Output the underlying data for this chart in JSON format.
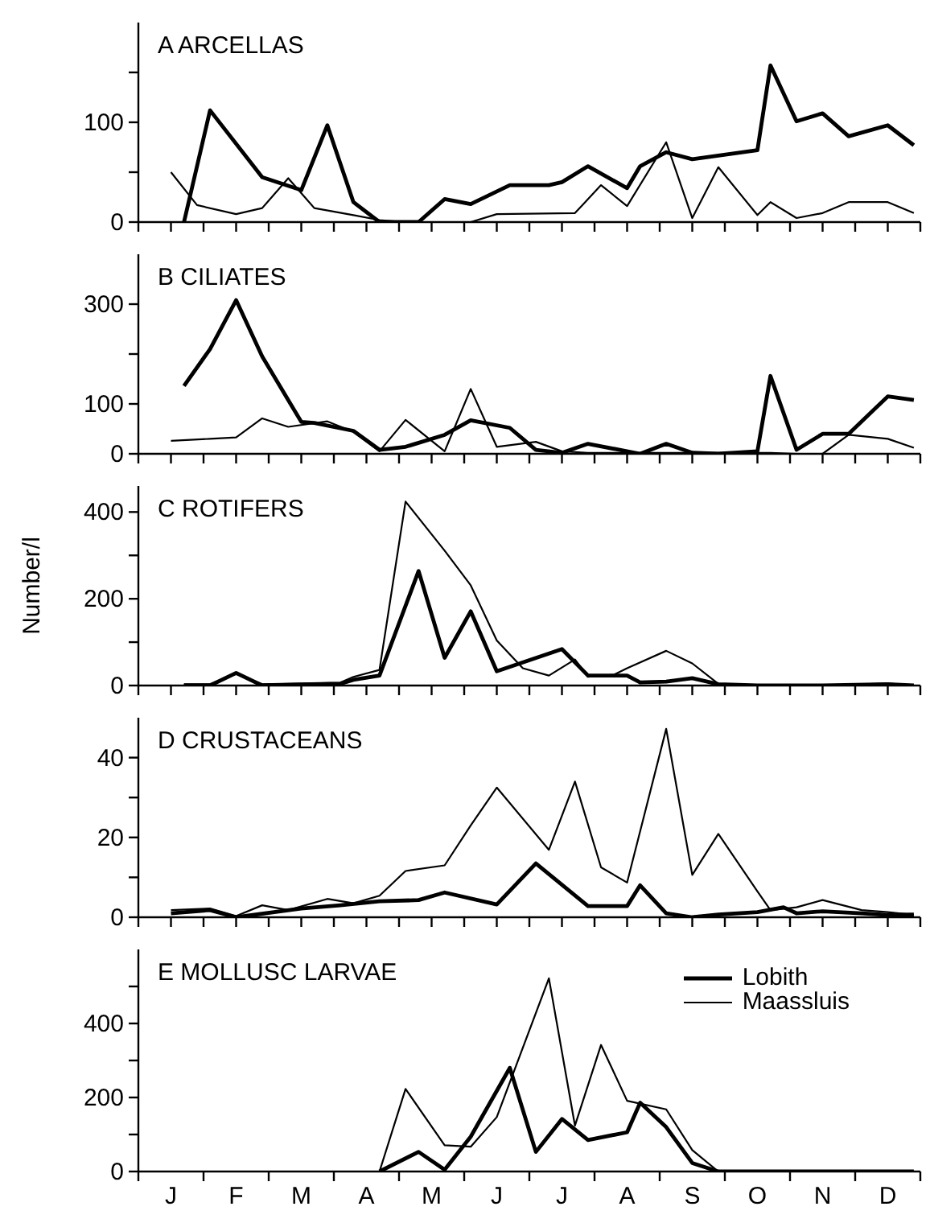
{
  "chart_data": [
    {
      "type": "line",
      "title": "A ARCELLAS",
      "ylim": [
        0,
        200
      ],
      "yticks": [
        0,
        {
          "value": 50,
          "label": null
        },
        100,
        {
          "value": 150,
          "label": null
        }
      ],
      "tick_labels": "y",
      "categories": [
        null,
        null,
        null,
        null,
        null,
        null,
        null,
        null,
        null,
        null,
        null,
        null,
        null,
        null,
        null,
        null,
        null,
        null,
        null,
        null,
        null,
        null,
        null,
        null,
        null,
        null,
        null,
        null,
        null,
        null,
        null,
        null,
        null,
        null,
        null,
        null,
        null,
        null,
        null,
        null,
        null,
        null,
        null,
        null,
        null,
        null,
        null,
        null,
        null,
        null,
        null,
        null,
        null,
        null,
        null,
        null,
        null,
        null,
        null,
        null
      ],
      "series": [
        {
          "color": "#000000",
          "values": [
            null,
            null,
            null,
            0,
            null,
            112,
            null,
            null,
            null,
            45,
            null,
            null,
            32,
            null,
            97,
            null,
            20,
            null,
            0,
            null,
            null,
            0,
            null,
            23,
            null,
            18,
            null,
            null,
            37,
            null,
            null,
            37,
            40,
            null,
            56,
            null,
            null,
            34,
            56,
            null,
            70,
            null,
            63,
            null,
            null,
            null,
            null,
            72,
            157,
            null,
            101,
            null,
            109,
            null,
            86,
            null,
            null,
            97,
            null,
            77
          ]
        },
        {
          "color": "#000000",
          "values": [
            null,
            null,
            50,
            null,
            17,
            null,
            null,
            8,
            null,
            14,
            null,
            44,
            null,
            14,
            null,
            null,
            7,
            null,
            2,
            null,
            0,
            null,
            null,
            null,
            null,
            0,
            null,
            8,
            null,
            null,
            null,
            null,
            null,
            9,
            null,
            37,
            null,
            16,
            null,
            null,
            80,
            null,
            4,
            null,
            55,
            null,
            null,
            7,
            20,
            null,
            4,
            null,
            9,
            null,
            20,
            null,
            null,
            20,
            null,
            9
          ]
        }
      ]
    },
    {
      "type": "line",
      "title": "B CILIATES",
      "ylim": [
        0,
        400
      ],
      "yticks": [
        0,
        100,
        {
          "value": 200,
          "label": null
        },
        300
      ],
      "tick_labels": "y",
      "categories": [
        null,
        null,
        null,
        null,
        null,
        null,
        null,
        null,
        null,
        null,
        null,
        null,
        null,
        null,
        null,
        null,
        null,
        null,
        null,
        null,
        null,
        null,
        null,
        null,
        null,
        null,
        null,
        null,
        null,
        null,
        null,
        null,
        null,
        null,
        null,
        null,
        null,
        null,
        null,
        null,
        null,
        null,
        null,
        null,
        null,
        null,
        null,
        null,
        null,
        null,
        null,
        null,
        null,
        null,
        null,
        null,
        null,
        null,
        null,
        null
      ],
      "series": [
        {
          "color": "#000000",
          "values": [
            null,
            null,
            null,
            136,
            null,
            210,
            null,
            308,
            null,
            195,
            null,
            null,
            64,
            62,
            null,
            null,
            46,
            null,
            8,
            null,
            14,
            null,
            null,
            38,
            null,
            67,
            null,
            null,
            52,
            null,
            8,
            null,
            2,
            null,
            20,
            null,
            null,
            null,
            0,
            null,
            20,
            null,
            2,
            null,
            0,
            null,
            null,
            5,
            156,
            null,
            8,
            null,
            40,
            null,
            40,
            null,
            null,
            115,
            null,
            108
          ]
        },
        {
          "color": "#000000",
          "values": [
            null,
            null,
            26,
            null,
            null,
            30,
            null,
            33,
            null,
            71,
            null,
            54,
            null,
            null,
            65,
            null,
            44,
            null,
            5,
            null,
            68,
            null,
            null,
            5,
            null,
            130,
            null,
            14,
            null,
            null,
            24,
            null,
            5,
            null,
            2,
            null,
            null,
            null,
            null,
            null,
            null,
            null,
            null,
            null,
            null,
            null,
            null,
            null,
            2,
            null,
            0,
            null,
            0,
            null,
            38,
            null,
            null,
            30,
            null,
            12
          ]
        }
      ]
    },
    {
      "type": "line",
      "title": "C ROTIFERS",
      "ylabel": "Number/l",
      "ylim": [
        0,
        460
      ],
      "yticks": [
        0,
        {
          "value": 100,
          "label": null
        },
        200,
        {
          "value": 300,
          "label": null
        },
        400
      ],
      "tick_labels": "y",
      "categories": [
        null,
        null,
        null,
        null,
        null,
        null,
        null,
        null,
        null,
        null,
        null,
        null,
        null,
        null,
        null,
        null,
        null,
        null,
        null,
        null,
        null,
        null,
        null,
        null,
        null,
        null,
        null,
        null,
        null,
        null,
        null,
        null,
        null,
        null,
        null,
        null,
        null,
        null,
        null,
        null,
        null,
        null,
        null,
        null,
        null,
        null,
        null,
        null,
        null,
        null,
        null,
        null,
        null,
        null,
        null,
        null,
        null,
        null,
        null,
        null
      ],
      "series": [
        {
          "color": "#000000",
          "values": [
            null,
            null,
            null,
            0,
            null,
            0,
            null,
            29,
            null,
            0,
            null,
            null,
            null,
            null,
            null,
            4,
            13,
            null,
            23,
            null,
            null,
            264,
            null,
            64,
            null,
            171,
            null,
            33,
            null,
            null,
            null,
            null,
            84,
            null,
            23,
            null,
            null,
            23,
            7,
            null,
            9,
            null,
            17,
            null,
            3,
            null,
            null,
            0,
            null,
            null,
            null,
            null,
            0,
            null,
            null,
            null,
            null,
            3,
            null,
            0
          ]
        },
        {
          "color": "#000000",
          "values": [
            null,
            null,
            null,
            3,
            null,
            3,
            null,
            27,
            null,
            3,
            null,
            null,
            null,
            null,
            null,
            7,
            20,
            null,
            36,
            null,
            424,
            null,
            null,
            311,
            null,
            231,
            null,
            104,
            null,
            40,
            null,
            23,
            null,
            60,
            20,
            null,
            25,
            40,
            null,
            null,
            80,
            null,
            51,
            null,
            4,
            null,
            null,
            0,
            null,
            null,
            null,
            null,
            0,
            null,
            null,
            null,
            null,
            5,
            null,
            0
          ]
        }
      ]
    },
    {
      "type": "line",
      "title": "D CRUSTACEANS",
      "ylim": [
        0,
        50
      ],
      "yticks": [
        0,
        {
          "value": 10,
          "label": null
        },
        20,
        {
          "value": 30,
          "label": null
        },
        40
      ],
      "tick_labels": "y",
      "categories": [
        null,
        null,
        null,
        null,
        null,
        null,
        null,
        null,
        null,
        null,
        null,
        null,
        null,
        null,
        null,
        null,
        null,
        null,
        null,
        null,
        null,
        null,
        null,
        null,
        null,
        null,
        null,
        null,
        null,
        null,
        null,
        null,
        null,
        null,
        null,
        null,
        null,
        null,
        null,
        null,
        null,
        null,
        null,
        null,
        null,
        null,
        null,
        null,
        null,
        null,
        null,
        null,
        null,
        null,
        null,
        null,
        null,
        null,
        null,
        null
      ],
      "series": [
        {
          "color": "#000000",
          "values": [
            null,
            null,
            1,
            null,
            null,
            1.8,
            null,
            0,
            null,
            null,
            null,
            null,
            2.2,
            null,
            null,
            3,
            null,
            null,
            4,
            null,
            null,
            4.3,
            null,
            6.2,
            null,
            null,
            null,
            3.2,
            null,
            null,
            13.5,
            null,
            null,
            null,
            2.8,
            null,
            null,
            2.8,
            8,
            null,
            1,
            null,
            0,
            null,
            0.7,
            null,
            null,
            1.3,
            null,
            2.5,
            1,
            null,
            1.5,
            null,
            null,
            1,
            null,
            0.6,
            null,
            0.7
          ]
        },
        {
          "color": "#000000",
          "values": [
            null,
            null,
            1.8,
            null,
            null,
            2.2,
            null,
            0.3,
            null,
            3,
            null,
            1.8,
            null,
            null,
            4.6,
            null,
            3.5,
            null,
            5.4,
            null,
            11.6,
            null,
            null,
            13,
            null,
            23,
            null,
            32.5,
            null,
            null,
            null,
            16.9,
            null,
            34,
            null,
            12.5,
            null,
            8.7,
            null,
            null,
            47.2,
            null,
            10.6,
            null,
            20.9,
            null,
            null,
            6.5,
            1.8,
            null,
            2.5,
            null,
            4.3,
            null,
            null,
            1.8,
            null,
            1.3,
            null,
            0.6
          ]
        }
      ]
    },
    {
      "type": "line",
      "title": "E MOLLUSC LARVAE",
      "ylim": [
        0,
        600
      ],
      "yticks": [
        0,
        {
          "value": 100,
          "label": null
        },
        200,
        {
          "value": 300,
          "label": null
        },
        400,
        {
          "value": 500,
          "label": null
        }
      ],
      "legend": "top right",
      "categories": [
        null,
        null,
        "J",
        null,
        null,
        null,
        null,
        "F",
        null,
        null,
        null,
        null,
        "M",
        null,
        null,
        null,
        null,
        "A",
        null,
        null,
        null,
        null,
        "M",
        null,
        null,
        null,
        null,
        "J",
        null,
        null,
        null,
        null,
        "J",
        null,
        null,
        null,
        null,
        "A",
        null,
        null,
        null,
        null,
        "S",
        null,
        null,
        null,
        null,
        "O",
        null,
        null,
        null,
        null,
        "N",
        null,
        null,
        null,
        null,
        "D",
        null,
        null
      ],
      "series": [
        {
          "name": "Lobith",
          "color": "#000000",
          "values": [
            null,
            null,
            null,
            null,
            null,
            null,
            null,
            null,
            null,
            null,
            null,
            null,
            null,
            null,
            null,
            null,
            null,
            null,
            0,
            null,
            null,
            53,
            null,
            5,
            null,
            94,
            null,
            null,
            280,
            null,
            53,
            null,
            142,
            null,
            85,
            null,
            null,
            106,
            186,
            null,
            120,
            null,
            23,
            null,
            0,
            null,
            null,
            null,
            null,
            null,
            null,
            null,
            null,
            null,
            null,
            null,
            null,
            null,
            null,
            0
          ]
        },
        {
          "name": "Maassluis",
          "color": "#000000",
          "values": [
            null,
            null,
            null,
            null,
            null,
            null,
            null,
            null,
            null,
            null,
            null,
            null,
            null,
            null,
            null,
            null,
            null,
            null,
            0,
            null,
            223,
            null,
            null,
            71,
            null,
            67,
            null,
            147,
            null,
            null,
            null,
            522,
            null,
            124,
            null,
            342,
            null,
            191,
            null,
            null,
            168,
            null,
            58,
            null,
            0,
            null,
            null,
            null,
            null,
            null,
            null,
            null,
            null,
            null,
            null,
            null,
            null,
            null,
            null,
            0
          ]
        }
      ]
    }
  ]
}
